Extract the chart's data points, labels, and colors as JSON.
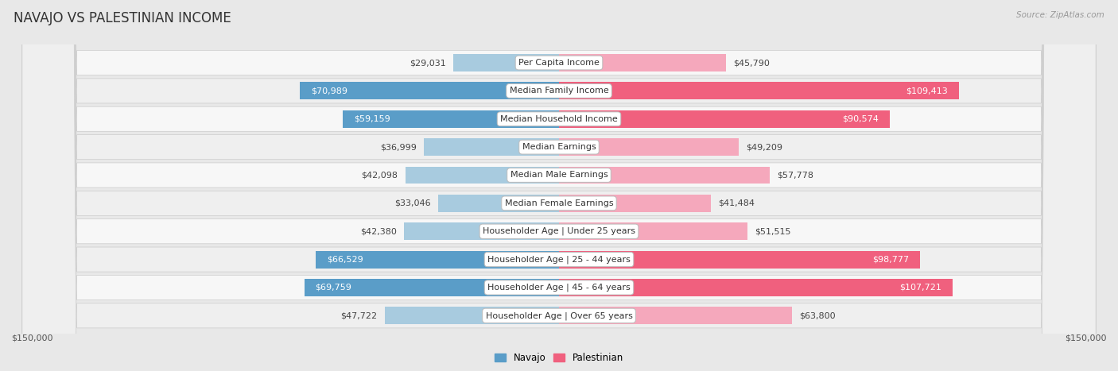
{
  "title": "NAVAJO VS PALESTINIAN INCOME",
  "source": "Source: ZipAtlas.com",
  "categories": [
    "Per Capita Income",
    "Median Family Income",
    "Median Household Income",
    "Median Earnings",
    "Median Male Earnings",
    "Median Female Earnings",
    "Householder Age | Under 25 years",
    "Householder Age | 25 - 44 years",
    "Householder Age | 45 - 64 years",
    "Householder Age | Over 65 years"
  ],
  "navajo_values": [
    29031,
    70989,
    59159,
    36999,
    42098,
    33046,
    42380,
    66529,
    69759,
    47722
  ],
  "palestinian_values": [
    45790,
    109413,
    90574,
    49209,
    57778,
    41484,
    51515,
    98777,
    107721,
    63800
  ],
  "navajo_labels": [
    "$29,031",
    "$70,989",
    "$59,159",
    "$36,999",
    "$42,098",
    "$33,046",
    "$42,380",
    "$66,529",
    "$69,759",
    "$47,722"
  ],
  "palestinian_labels": [
    "$45,790",
    "$109,413",
    "$90,574",
    "$49,209",
    "$57,778",
    "$41,484",
    "$51,515",
    "$98,777",
    "$107,721",
    "$63,800"
  ],
  "navajo_color_dark": "#5a9dc8",
  "navajo_color_light": "#a8cbdf",
  "palestinian_color_dark": "#f0607e",
  "palestinian_color_light": "#f5a8bc",
  "navajo_threshold": 55000,
  "palestinian_threshold": 70000,
  "max_value": 150000,
  "bg_color": "#e8e8e8",
  "row_bg_light": "#f5f5f5",
  "row_bg_dark": "#e0e0e0",
  "title_fontsize": 12,
  "label_fontsize": 8,
  "category_fontsize": 8,
  "source_fontsize": 7.5
}
